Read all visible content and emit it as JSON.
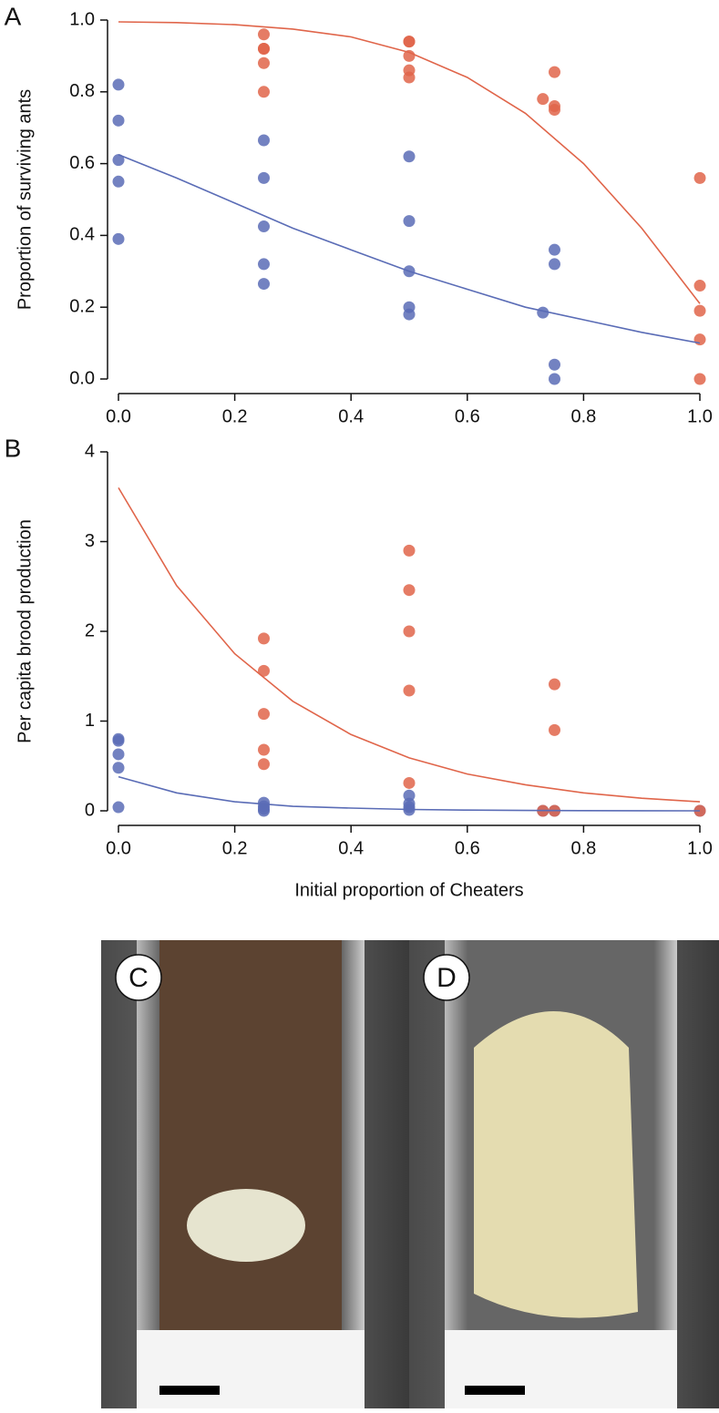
{
  "chart_data": [
    {
      "type": "scatter",
      "panel": "A",
      "ylabel": "Proportion of surviving ants",
      "xlim": [
        0,
        1
      ],
      "ylim": [
        0,
        1
      ],
      "xticks": [
        {
          "value": 0,
          "label": "0.0"
        },
        {
          "value": 0.2,
          "label": "0.2"
        },
        {
          "value": 0.4,
          "label": "0.4"
        },
        {
          "value": 0.6,
          "label": "0.6"
        },
        {
          "value": 0.8,
          "label": "0.8"
        },
        {
          "value": 1,
          "label": "1.0"
        }
      ],
      "yticks": [
        {
          "value": 0,
          "label": "0.0"
        },
        {
          "value": 0.2,
          "label": "0.2"
        },
        {
          "value": 0.4,
          "label": "0.4"
        },
        {
          "value": 0.6,
          "label": "0.6"
        },
        {
          "value": 0.8,
          "label": "0.8"
        },
        {
          "value": 1,
          "label": "1.0"
        }
      ],
      "series": [
        {
          "mode": "markers",
          "color": "#5a6cb6",
          "x": [
            0,
            0,
            0,
            0,
            0,
            0.25,
            0.25,
            0.25,
            0.25,
            0.25,
            0.5,
            0.5,
            0.5,
            0.5,
            0.5,
            0.73,
            0.75,
            0.75,
            0.75,
            0.75
          ],
          "values": [
            0.82,
            0.72,
            0.61,
            0.55,
            0.39,
            0.665,
            0.56,
            0.425,
            0.32,
            0.265,
            0.62,
            0.44,
            0.3,
            0.2,
            0.18,
            0.185,
            0.36,
            0.32,
            0.04,
            0
          ]
        },
        {
          "mode": "markers",
          "color": "#e0654a",
          "x": [
            0.25,
            0.25,
            0.25,
            0.25,
            0.25,
            0.5,
            0.5,
            0.5,
            0.5,
            0.5,
            0.73,
            0.75,
            0.75,
            0.75,
            1,
            1,
            1,
            1,
            1
          ],
          "values": [
            0.96,
            0.92,
            0.92,
            0.88,
            0.8,
            0.94,
            0.94,
            0.9,
            0.86,
            0.84,
            0.78,
            0.855,
            0.76,
            0.75,
            0.56,
            0.26,
            0.19,
            0.11,
            0
          ]
        },
        {
          "mode": "line",
          "color": "#5a6cb6",
          "x": [
            0,
            0.1,
            0.2,
            0.3,
            0.4,
            0.5,
            0.6,
            0.7,
            0.8,
            0.9,
            1
          ],
          "values": [
            0.625,
            0.56,
            0.49,
            0.42,
            0.36,
            0.3,
            0.25,
            0.2,
            0.165,
            0.13,
            0.1
          ]
        },
        {
          "mode": "line",
          "color": "#e0654a",
          "x": [
            0,
            0.1,
            0.2,
            0.3,
            0.4,
            0.5,
            0.6,
            0.7,
            0.8,
            0.9,
            1
          ],
          "values": [
            0.995,
            0.993,
            0.987,
            0.975,
            0.953,
            0.91,
            0.84,
            0.74,
            0.6,
            0.42,
            0.21
          ]
        }
      ]
    },
    {
      "type": "scatter",
      "panel": "B",
      "ylabel": "Per capita brood production",
      "xlabel": "Initial proportion of Cheaters",
      "xlim": [
        0,
        1
      ],
      "ylim": [
        0,
        4
      ],
      "xticks": [
        {
          "value": 0,
          "label": "0.0"
        },
        {
          "value": 0.2,
          "label": "0.2"
        },
        {
          "value": 0.4,
          "label": "0.4"
        },
        {
          "value": 0.6,
          "label": "0.6"
        },
        {
          "value": 0.8,
          "label": "0.8"
        },
        {
          "value": 1,
          "label": "1.0"
        }
      ],
      "yticks": [
        0,
        1,
        2,
        3,
        4
      ],
      "series": [
        {
          "mode": "markers",
          "color": "#5a6cb6",
          "x": [
            0,
            0,
            0,
            0,
            0,
            0.25,
            0.25,
            0.25,
            0.25,
            0.5,
            0.5,
            0.5,
            0.5,
            0.73,
            0.75,
            1
          ],
          "values": [
            0.8,
            0.78,
            0.63,
            0.48,
            0.04,
            0.09,
            0.05,
            0.02,
            0,
            0.17,
            0.08,
            0.04,
            0.01,
            0,
            0,
            0
          ]
        },
        {
          "mode": "markers",
          "color": "#e0654a",
          "x": [
            0.25,
            0.25,
            0.25,
            0.25,
            0.25,
            0.5,
            0.5,
            0.5,
            0.5,
            0.5,
            0.73,
            0.75,
            0.75,
            0.75,
            1
          ],
          "values": [
            1.92,
            1.56,
            1.08,
            0.68,
            0.52,
            2.9,
            2.46,
            2,
            1.34,
            0.31,
            0,
            1.41,
            0.9,
            0,
            0
          ]
        },
        {
          "mode": "line",
          "color": "#e0654a",
          "x": [
            0,
            0.1,
            0.2,
            0.3,
            0.4,
            0.5,
            0.6,
            0.7,
            0.8,
            0.9,
            1
          ],
          "values": [
            3.6,
            2.51,
            1.75,
            1.22,
            0.85,
            0.59,
            0.41,
            0.29,
            0.2,
            0.14,
            0.1
          ]
        },
        {
          "mode": "line",
          "color": "#5a6cb6",
          "x": [
            0,
            0.1,
            0.2,
            0.3,
            0.4,
            0.5,
            0.6,
            0.7,
            0.8,
            0.9,
            1
          ],
          "values": [
            0.38,
            0.2,
            0.1,
            0.05,
            0.03,
            0.015,
            0.008,
            0.004,
            0.002,
            0.001,
            0
          ]
        }
      ]
    }
  ],
  "photos": [
    {
      "label": "C"
    },
    {
      "label": "D"
    }
  ]
}
